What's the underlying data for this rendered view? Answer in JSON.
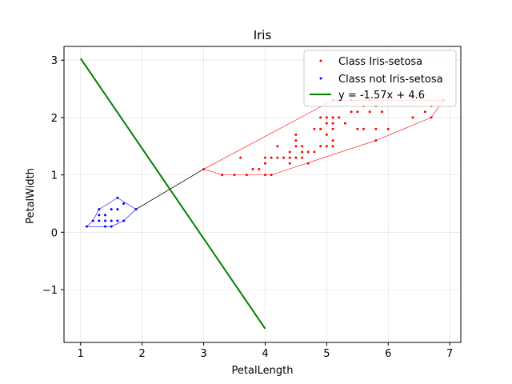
{
  "chart_data": {
    "type": "scatter",
    "title": "Iris",
    "xlabel": "PetalLength",
    "ylabel": "PetalWidth",
    "xlim": [
      0.73,
      7.18
    ],
    "ylim": [
      -1.92,
      3.24
    ],
    "xticks": [
      1,
      2,
      3,
      4,
      5,
      6,
      7
    ],
    "yticks": [
      -1,
      0,
      1,
      2,
      3
    ],
    "grid": true,
    "legend_position": "top-right",
    "series": [
      {
        "name": "Class Iris-setosa",
        "kind": "points",
        "color": "#ff0000",
        "points": [
          [
            3.0,
            1.1
          ],
          [
            3.3,
            1.0
          ],
          [
            3.5,
            1.0
          ],
          [
            3.6,
            1.3
          ],
          [
            3.7,
            1.0
          ],
          [
            3.8,
            1.1
          ],
          [
            3.9,
            1.1
          ],
          [
            4.0,
            1.0
          ],
          [
            4.0,
            1.2
          ],
          [
            4.0,
            1.3
          ],
          [
            4.1,
            1.0
          ],
          [
            4.1,
            1.3
          ],
          [
            4.2,
            1.3
          ],
          [
            4.2,
            1.5
          ],
          [
            4.3,
            1.3
          ],
          [
            4.4,
            1.2
          ],
          [
            4.4,
            1.3
          ],
          [
            4.4,
            1.4
          ],
          [
            4.5,
            1.3
          ],
          [
            4.5,
            1.5
          ],
          [
            4.5,
            1.6
          ],
          [
            4.5,
            1.7
          ],
          [
            4.6,
            1.3
          ],
          [
            4.6,
            1.4
          ],
          [
            4.6,
            1.5
          ],
          [
            4.7,
            1.2
          ],
          [
            4.7,
            1.4
          ],
          [
            4.8,
            1.4
          ],
          [
            4.8,
            1.8
          ],
          [
            4.9,
            1.5
          ],
          [
            4.9,
            1.8
          ],
          [
            4.9,
            2.0
          ],
          [
            5.0,
            1.5
          ],
          [
            5.0,
            1.7
          ],
          [
            5.0,
            1.9
          ],
          [
            5.0,
            2.0
          ],
          [
            5.1,
            1.5
          ],
          [
            5.1,
            1.6
          ],
          [
            5.1,
            1.8
          ],
          [
            5.1,
            1.9
          ],
          [
            5.1,
            2.0
          ],
          [
            5.1,
            2.3
          ],
          [
            5.2,
            2.0
          ],
          [
            5.2,
            2.3
          ],
          [
            5.3,
            1.9
          ],
          [
            5.4,
            2.1
          ],
          [
            5.4,
            2.3
          ],
          [
            5.5,
            1.8
          ],
          [
            5.5,
            2.1
          ],
          [
            5.6,
            1.8
          ],
          [
            5.6,
            2.2
          ],
          [
            5.6,
            2.4
          ],
          [
            5.7,
            2.1
          ],
          [
            5.7,
            2.3
          ],
          [
            5.8,
            1.6
          ],
          [
            5.8,
            1.8
          ],
          [
            5.8,
            2.2
          ],
          [
            5.9,
            2.1
          ],
          [
            6.0,
            1.8
          ],
          [
            6.4,
            2.0
          ],
          [
            6.6,
            2.1
          ],
          [
            6.7,
            2.0
          ],
          [
            6.7,
            2.2
          ],
          [
            6.9,
            2.3
          ]
        ]
      },
      {
        "name": "",
        "kind": "hull",
        "color": "#ff0000",
        "points": [
          [
            3.0,
            1.1
          ],
          [
            3.3,
            1.0
          ],
          [
            4.1,
            1.0
          ],
          [
            5.8,
            1.6
          ],
          [
            6.7,
            2.0
          ],
          [
            6.9,
            2.3
          ],
          [
            5.1,
            2.3
          ]
        ]
      },
      {
        "name": "Class not Iris-setosa",
        "kind": "points",
        "color": "#0000ff",
        "points": [
          [
            1.1,
            0.1
          ],
          [
            1.2,
            0.2
          ],
          [
            1.3,
            0.2
          ],
          [
            1.3,
            0.3
          ],
          [
            1.3,
            0.4
          ],
          [
            1.4,
            0.1
          ],
          [
            1.4,
            0.2
          ],
          [
            1.4,
            0.3
          ],
          [
            1.5,
            0.1
          ],
          [
            1.5,
            0.2
          ],
          [
            1.5,
            0.4
          ],
          [
            1.6,
            0.2
          ],
          [
            1.6,
            0.4
          ],
          [
            1.6,
            0.6
          ],
          [
            1.7,
            0.2
          ],
          [
            1.7,
            0.5
          ],
          [
            1.9,
            0.4
          ]
        ]
      },
      {
        "name": "",
        "kind": "hull",
        "color": "#0000ff",
        "points": [
          [
            1.1,
            0.1
          ],
          [
            1.5,
            0.1
          ],
          [
            1.7,
            0.2
          ],
          [
            1.9,
            0.4
          ],
          [
            1.6,
            0.6
          ],
          [
            1.3,
            0.4
          ],
          [
            1.2,
            0.2
          ]
        ]
      },
      {
        "name": "",
        "kind": "segment",
        "color": "#000000",
        "points": [
          [
            1.9,
            0.4
          ],
          [
            3.0,
            1.1
          ]
        ]
      },
      {
        "name": "y = -1.57x + 4.6",
        "kind": "line",
        "color": "#008000",
        "points": [
          [
            1.0,
            3.03
          ],
          [
            4.0,
            -1.68
          ]
        ]
      }
    ]
  }
}
